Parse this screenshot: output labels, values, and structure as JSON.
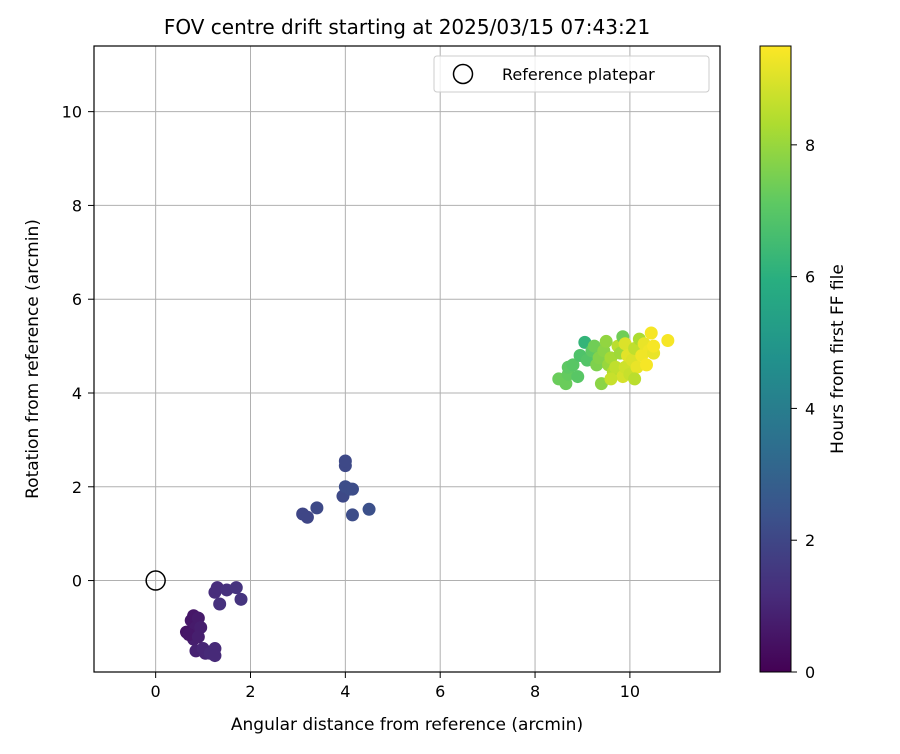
{
  "chart_data": {
    "type": "scatter",
    "title": "FOV centre drift starting at 2025/03/15 07:43:21",
    "xlabel": "Angular distance from reference (arcmin)",
    "ylabel": "Rotation from reference (arcmin)",
    "xlim": [
      -1.3,
      11.9
    ],
    "ylim": [
      -1.95,
      11.4
    ],
    "x_ticks": [
      0,
      2,
      4,
      6,
      8,
      10
    ],
    "y_ticks": [
      0,
      2,
      4,
      6,
      8,
      10
    ],
    "grid": true,
    "legend": {
      "position": "top-right",
      "entries": [
        {
          "label": "Reference platepar",
          "marker": "open-circle"
        }
      ]
    },
    "reference_point": {
      "x": 0,
      "y": 0
    },
    "colorbar": {
      "label": "Hours from first FF file",
      "colormap": "viridis",
      "range": [
        0,
        9.5
      ],
      "ticks": [
        0,
        2,
        4,
        6,
        8
      ]
    },
    "points": [
      {
        "x": 0.65,
        "y": -1.1,
        "h": 0.5
      },
      {
        "x": 0.75,
        "y": -0.85,
        "h": 0.6
      },
      {
        "x": 0.8,
        "y": -0.75,
        "h": 0.6
      },
      {
        "x": 0.85,
        "y": -1.0,
        "h": 0.7
      },
      {
        "x": 0.9,
        "y": -0.8,
        "h": 0.7
      },
      {
        "x": 0.95,
        "y": -1.0,
        "h": 0.8
      },
      {
        "x": 0.8,
        "y": -1.25,
        "h": 0.8
      },
      {
        "x": 0.85,
        "y": -1.5,
        "h": 0.9
      },
      {
        "x": 1.0,
        "y": -1.45,
        "h": 1.0
      },
      {
        "x": 1.05,
        "y": -1.55,
        "h": 1.0
      },
      {
        "x": 1.15,
        "y": -1.55,
        "h": 1.1
      },
      {
        "x": 1.25,
        "y": -1.45,
        "h": 1.1
      },
      {
        "x": 1.25,
        "y": -1.6,
        "h": 1.1
      },
      {
        "x": 0.7,
        "y": -1.15,
        "h": 0.6
      },
      {
        "x": 0.9,
        "y": -1.2,
        "h": 0.8
      },
      {
        "x": 1.25,
        "y": -0.25,
        "h": 1.2
      },
      {
        "x": 1.3,
        "y": -0.15,
        "h": 1.2
      },
      {
        "x": 1.35,
        "y": -0.5,
        "h": 1.3
      },
      {
        "x": 1.5,
        "y": -0.2,
        "h": 1.3
      },
      {
        "x": 1.7,
        "y": -0.15,
        "h": 1.4
      },
      {
        "x": 1.8,
        "y": -0.4,
        "h": 1.4
      },
      {
        "x": 3.1,
        "y": 1.42,
        "h": 2.0
      },
      {
        "x": 3.2,
        "y": 1.35,
        "h": 2.0
      },
      {
        "x": 3.4,
        "y": 1.55,
        "h": 2.1
      },
      {
        "x": 3.95,
        "y": 1.8,
        "h": 2.1
      },
      {
        "x": 4.0,
        "y": 2.45,
        "h": 2.1
      },
      {
        "x": 4.0,
        "y": 2.55,
        "h": 2.1
      },
      {
        "x": 4.0,
        "y": 2.0,
        "h": 2.2
      },
      {
        "x": 4.1,
        "y": 1.95,
        "h": 2.2
      },
      {
        "x": 4.15,
        "y": 1.95,
        "h": 2.2
      },
      {
        "x": 4.15,
        "y": 1.4,
        "h": 2.2
      },
      {
        "x": 4.5,
        "y": 1.52,
        "h": 2.3
      },
      {
        "x": 8.5,
        "y": 4.3,
        "h": 7.3
      },
      {
        "x": 8.65,
        "y": 4.2,
        "h": 7.3
      },
      {
        "x": 8.7,
        "y": 4.4,
        "h": 7.2
      },
      {
        "x": 8.7,
        "y": 4.55,
        "h": 7.1
      },
      {
        "x": 8.8,
        "y": 4.6,
        "h": 7.0
      },
      {
        "x": 8.9,
        "y": 4.35,
        "h": 7.0
      },
      {
        "x": 8.95,
        "y": 4.8,
        "h": 6.8
      },
      {
        "x": 9.05,
        "y": 5.08,
        "h": 6.2
      },
      {
        "x": 9.1,
        "y": 4.7,
        "h": 6.9
      },
      {
        "x": 9.2,
        "y": 4.9,
        "h": 7.1
      },
      {
        "x": 9.25,
        "y": 5.0,
        "h": 7.4
      },
      {
        "x": 9.3,
        "y": 4.6,
        "h": 7.6
      },
      {
        "x": 9.35,
        "y": 4.75,
        "h": 7.7
      },
      {
        "x": 9.4,
        "y": 4.2,
        "h": 7.8
      },
      {
        "x": 9.45,
        "y": 4.9,
        "h": 7.8
      },
      {
        "x": 9.5,
        "y": 5.1,
        "h": 7.9
      },
      {
        "x": 9.55,
        "y": 4.6,
        "h": 8.0
      },
      {
        "x": 9.6,
        "y": 4.75,
        "h": 8.2
      },
      {
        "x": 9.65,
        "y": 4.45,
        "h": 8.4
      },
      {
        "x": 9.7,
        "y": 4.55,
        "h": 8.6
      },
      {
        "x": 9.75,
        "y": 5.0,
        "h": 8.5
      },
      {
        "x": 9.8,
        "y": 4.85,
        "h": 8.1
      },
      {
        "x": 9.85,
        "y": 5.2,
        "h": 7.4
      },
      {
        "x": 9.85,
        "y": 4.35,
        "h": 8.9
      },
      {
        "x": 9.9,
        "y": 4.55,
        "h": 8.8
      },
      {
        "x": 9.9,
        "y": 5.05,
        "h": 9.0
      },
      {
        "x": 9.95,
        "y": 4.8,
        "h": 9.1
      },
      {
        "x": 10.0,
        "y": 4.4,
        "h": 8.7
      },
      {
        "x": 10.05,
        "y": 4.7,
        "h": 9.0
      },
      {
        "x": 10.1,
        "y": 4.95,
        "h": 8.6
      },
      {
        "x": 10.15,
        "y": 4.55,
        "h": 9.2
      },
      {
        "x": 10.2,
        "y": 5.15,
        "h": 8.3
      },
      {
        "x": 10.25,
        "y": 4.8,
        "h": 9.3
      },
      {
        "x": 10.3,
        "y": 5.05,
        "h": 9.2
      },
      {
        "x": 10.35,
        "y": 4.6,
        "h": 9.4
      },
      {
        "x": 10.4,
        "y": 4.9,
        "h": 9.3
      },
      {
        "x": 10.45,
        "y": 5.28,
        "h": 9.4
      },
      {
        "x": 10.5,
        "y": 4.85,
        "h": 9.2
      },
      {
        "x": 10.5,
        "y": 5.0,
        "h": 9.4
      },
      {
        "x": 10.8,
        "y": 5.12,
        "h": 9.4
      },
      {
        "x": 9.6,
        "y": 4.3,
        "h": 8.7
      },
      {
        "x": 10.1,
        "y": 4.3,
        "h": 8.5
      }
    ]
  }
}
